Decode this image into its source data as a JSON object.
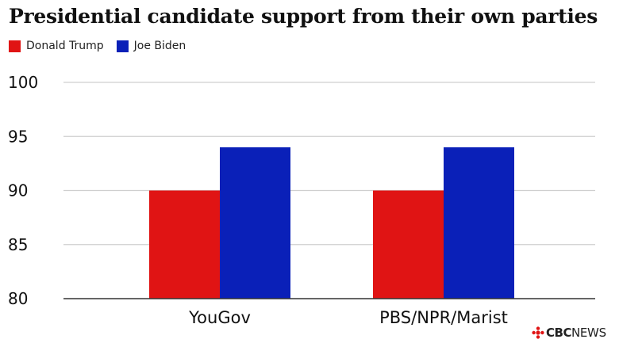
{
  "chart_data": {
    "type": "bar",
    "title": "Presidential candidate support from their own parties",
    "categories": [
      "YouGov",
      "PBS/NPR/Marist"
    ],
    "series": [
      {
        "name": "Donald Trump",
        "values": [
          90,
          90
        ],
        "color": "#e01414"
      },
      {
        "name": "Joe Biden",
        "values": [
          94,
          94
        ],
        "color": "#0a20b8"
      }
    ],
    "xlabel": "",
    "ylabel": "",
    "ylim": [
      80,
      100
    ],
    "yticks": [
      80,
      85,
      90,
      95,
      100
    ],
    "grid": true,
    "legend_position": "top-left"
  },
  "branding": {
    "cbc": "CBC",
    "news": "NEWS",
    "icon": "cbc-gem-icon",
    "color": "#e01414"
  }
}
